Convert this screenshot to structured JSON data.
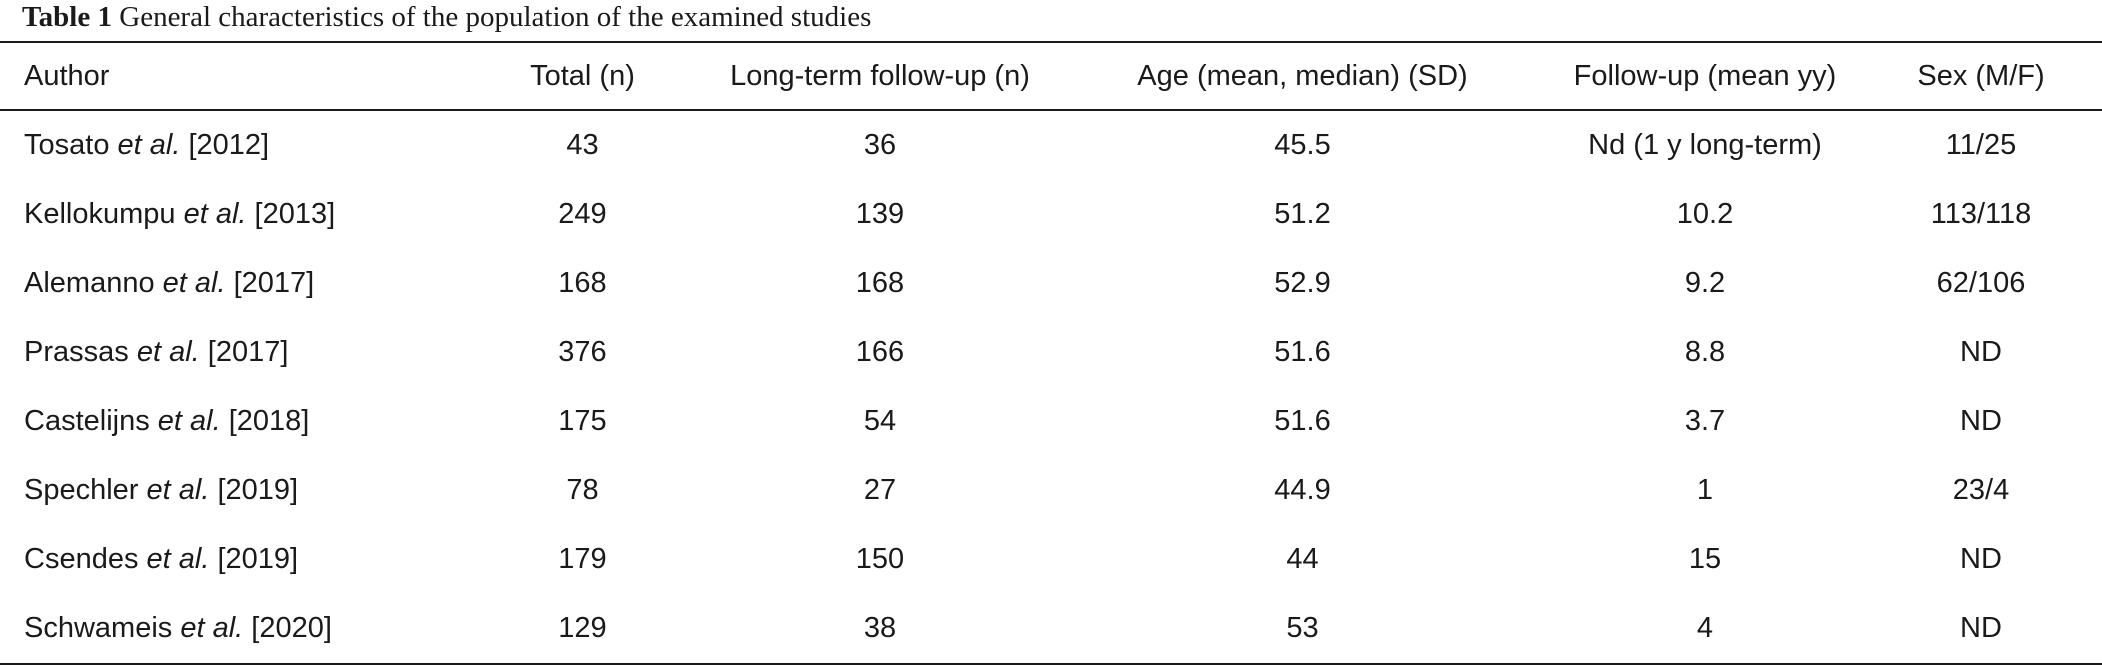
{
  "caption": {
    "label": "Table 1",
    "text": "General characteristics of the population of the examined studies"
  },
  "table": {
    "headers": {
      "author": "Author",
      "total": "Total (n)",
      "long_term": "Long-term follow-up (n)",
      "age": "Age (mean, median) (SD)",
      "follow_up": "Follow-up (mean yy)",
      "sex": "Sex (M/F)"
    },
    "rows": [
      {
        "author_name": "Tosato",
        "et_al": "et al.",
        "year": "[2012]",
        "total": "43",
        "long_term": "36",
        "age": "45.5",
        "follow_up": "Nd (1 y long-term)",
        "sex": "11/25"
      },
      {
        "author_name": "Kellokumpu",
        "et_al": "et al.",
        "year": "[2013]",
        "total": "249",
        "long_term": "139",
        "age": "51.2",
        "follow_up": "10.2",
        "sex": "113/118"
      },
      {
        "author_name": "Alemanno",
        "et_al": "et al.",
        "year": "[2017]",
        "total": "168",
        "long_term": "168",
        "age": "52.9",
        "follow_up": "9.2",
        "sex": "62/106"
      },
      {
        "author_name": "Prassas",
        "et_al": "et al.",
        "year": "[2017]",
        "total": "376",
        "long_term": "166",
        "age": "51.6",
        "follow_up": "8.8",
        "sex": "ND"
      },
      {
        "author_name": "Castelijns",
        "et_al": "et al.",
        "year": "[2018]",
        "total": "175",
        "long_term": "54",
        "age": "51.6",
        "follow_up": "3.7",
        "sex": "ND"
      },
      {
        "author_name": "Spechler",
        "et_al": "et al.",
        "year": "[2019]",
        "total": "78",
        "long_term": "27",
        "age": "44.9",
        "follow_up": "1",
        "sex": "23/4"
      },
      {
        "author_name": "Csendes",
        "et_al": "et al.",
        "year": "[2019]",
        "total": "179",
        "long_term": "150",
        "age": "44",
        "follow_up": "15",
        "sex": "ND"
      },
      {
        "author_name": "Schwameis",
        "et_al": "et al.",
        "year": "[2020]",
        "total": "129",
        "long_term": "38",
        "age": "53",
        "follow_up": "4",
        "sex": "ND"
      }
    ]
  }
}
